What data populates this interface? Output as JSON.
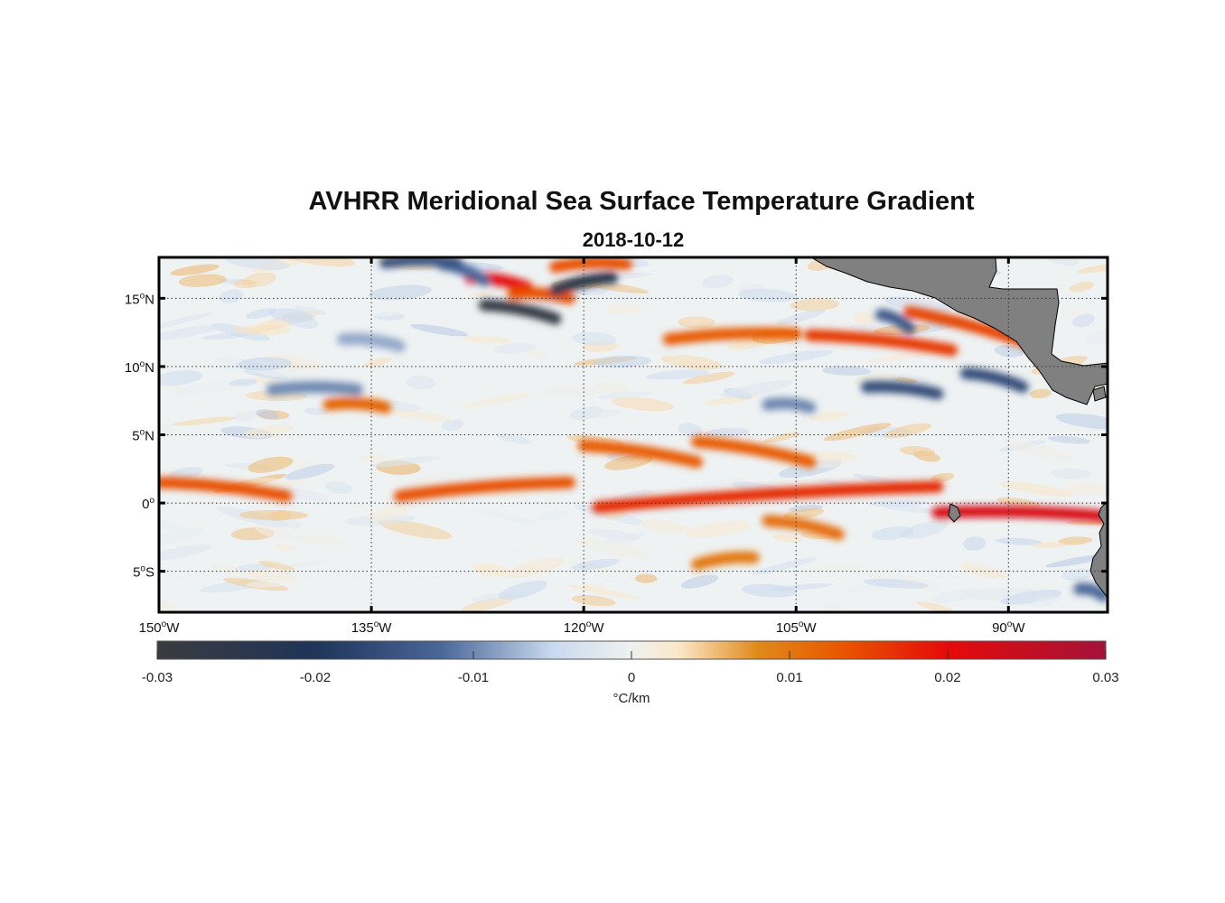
{
  "title": "AVHRR Meridional Sea Surface Temperature Gradient",
  "subtitle": "2018-10-12",
  "map": {
    "lon_range": [
      -150,
      -83
    ],
    "lat_range": [
      -8,
      18
    ],
    "lat_ticks": [
      {
        "value": 15,
        "deg": "15",
        "hemi": "N"
      },
      {
        "value": 10,
        "deg": "10",
        "hemi": "N"
      },
      {
        "value": 5,
        "deg": "5",
        "hemi": "N"
      },
      {
        "value": 0,
        "deg": "0",
        "hemi": ""
      },
      {
        "value": -5,
        "deg": "5",
        "hemi": "S"
      }
    ],
    "lon_ticks": [
      {
        "value": -150,
        "deg": "150",
        "hemi": "W"
      },
      {
        "value": -135,
        "deg": "135",
        "hemi": "W"
      },
      {
        "value": -120,
        "deg": "120",
        "hemi": "W"
      },
      {
        "value": -105,
        "deg": "105",
        "hemi": "W"
      },
      {
        "value": -90,
        "deg": "90",
        "hemi": "W"
      }
    ],
    "land_color": "#808080",
    "grid": "dotted"
  },
  "colorbar": {
    "min": -0.03,
    "max": 0.03,
    "ticks": [
      "-0.03",
      "-0.02",
      "-0.01",
      "0",
      "0.01",
      "0.02",
      "0.03"
    ],
    "unit_label": "°C/km",
    "stops": [
      {
        "v": -0.03,
        "color": "#3b3b3f"
      },
      {
        "v": -0.02,
        "color": "#1f3458"
      },
      {
        "v": -0.012,
        "color": "#4a6799"
      },
      {
        "v": -0.005,
        "color": "#c9d9ee"
      },
      {
        "v": 0,
        "color": "#eef1f0"
      },
      {
        "v": 0.003,
        "color": "#fbe7c8"
      },
      {
        "v": 0.008,
        "color": "#e08a1a"
      },
      {
        "v": 0.013,
        "color": "#e85a00"
      },
      {
        "v": 0.02,
        "color": "#e50a0a"
      },
      {
        "v": 0.03,
        "color": "#a3123a"
      }
    ]
  },
  "features": {
    "positive_bands": [
      {
        "lon": [
          -150,
          -141
        ],
        "lat": [
          1.5,
          0.5
        ],
        "value": 0.014
      },
      {
        "lon": [
          -133,
          -121
        ],
        "lat": [
          0.5,
          1.5
        ],
        "value": 0.014
      },
      {
        "lon": [
          -120,
          -112
        ],
        "lat": [
          4.2,
          3.0
        ],
        "value": 0.013
      },
      {
        "lon": [
          -112,
          -104
        ],
        "lat": [
          4.5,
          3.0
        ],
        "value": 0.013
      },
      {
        "lon": [
          -119,
          -95
        ],
        "lat": [
          -0.3,
          1.2
        ],
        "value": 0.017
      },
      {
        "lon": [
          -95,
          -83
        ],
        "lat": [
          -0.7,
          -1.0
        ],
        "value": 0.022
      },
      {
        "lon": [
          -104,
          -94
        ],
        "lat": [
          12.3,
          11.2
        ],
        "value": 0.016
      },
      {
        "lon": [
          -114,
          -105
        ],
        "lat": [
          12.0,
          12.4
        ],
        "value": 0.013
      },
      {
        "lon": [
          -128,
          -124
        ],
        "lat": [
          16.5,
          15.8
        ],
        "value": 0.02
      },
      {
        "lon": [
          -125,
          -121
        ],
        "lat": [
          15.3,
          15.0
        ],
        "value": 0.014
      },
      {
        "lon": [
          -122,
          -117
        ],
        "lat": [
          17.3,
          17.5
        ],
        "value": 0.014
      },
      {
        "lon": [
          -138,
          -134
        ],
        "lat": [
          7.2,
          7.0
        ],
        "value": 0.012
      },
      {
        "lon": [
          -97,
          -88
        ],
        "lat": [
          14.0,
          11.5
        ],
        "value": 0.015
      },
      {
        "lon": [
          -112,
          -108
        ],
        "lat": [
          -4.5,
          -4.0
        ],
        "value": 0.01
      },
      {
        "lon": [
          -107,
          -102
        ],
        "lat": [
          -1.3,
          -2.3
        ],
        "value": 0.011
      }
    ],
    "negative_bands": [
      {
        "lon": [
          -130,
          -127
        ],
        "lat": [
          17.5,
          16.3
        ],
        "value": -0.012
      },
      {
        "lon": [
          -127,
          -122
        ],
        "lat": [
          14.5,
          13.5
        ],
        "value": -0.028
      },
      {
        "lon": [
          -122,
          -118
        ],
        "lat": [
          15.6,
          16.5
        ],
        "value": -0.024
      },
      {
        "lon": [
          -142,
          -136
        ],
        "lat": [
          8.3,
          8.3
        ],
        "value": -0.01
      },
      {
        "lon": [
          -100,
          -95
        ],
        "lat": [
          8.5,
          8.0
        ],
        "value": -0.016
      },
      {
        "lon": [
          -93,
          -89
        ],
        "lat": [
          9.5,
          8.5
        ],
        "value": -0.016
      },
      {
        "lon": [
          -134,
          -129
        ],
        "lat": [
          17.6,
          17.6
        ],
        "value": -0.015
      },
      {
        "lon": [
          -107,
          -104
        ],
        "lat": [
          7.2,
          7.0
        ],
        "value": -0.01
      },
      {
        "lon": [
          -99,
          -97
        ],
        "lat": [
          13.8,
          12.8
        ],
        "value": -0.014
      },
      {
        "lon": [
          -85,
          -83.3
        ],
        "lat": [
          -6.3,
          -6.8
        ],
        "value": -0.012
      },
      {
        "lon": [
          -137,
          -133
        ],
        "lat": [
          12.0,
          11.5
        ],
        "value": -0.008
      }
    ]
  }
}
